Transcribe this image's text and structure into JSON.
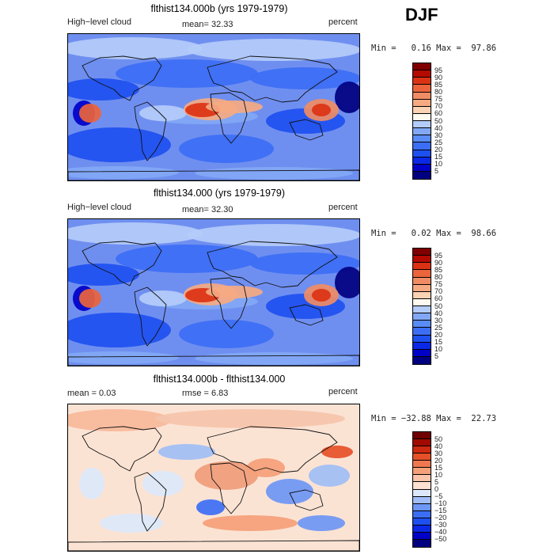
{
  "season": "DJF",
  "panels": [
    {
      "title": "flthist134.000b (yrs 1979-1979)",
      "left_label": "High−level cloud",
      "middle_label": "mean=  32.33",
      "right_label": "percent",
      "min_max": "Min =   0.16 Max =  97.86"
    },
    {
      "title": "flthist134.000 (yrs 1979-1979)",
      "left_label": "High−level cloud",
      "middle_label": "mean=  32.30",
      "right_label": "percent",
      "min_max": "Min =   0.02 Max =  98.66"
    },
    {
      "title": "flthist134.000b - flthist134.000",
      "left_label": "mean =   0.03",
      "middle_label": "rmse =   6.83",
      "right_label": "percent",
      "min_max": "Min = −32.88 Max =  22.73"
    }
  ],
  "chart_data": [
    {
      "type": "heatmap",
      "title": "flthist134.000b (yrs 1979-1979)",
      "variable": "High-level cloud",
      "units": "percent",
      "mean": 32.33,
      "min": 0.16,
      "max": 97.86,
      "colorbar_levels": [
        5,
        10,
        15,
        20,
        25,
        30,
        40,
        50,
        60,
        70,
        75,
        80,
        85,
        90,
        95
      ],
      "colorbar_colors": [
        "#000080",
        "#0000c8",
        "#0a28e6",
        "#1e50f0",
        "#3c6ef5",
        "#5a8cf5",
        "#82a8f5",
        "#b4ccfa",
        "#fffaf0",
        "#fad2b4",
        "#f5aa82",
        "#f08c64",
        "#eb643c",
        "#dc3214",
        "#b40a00",
        "#800000"
      ]
    },
    {
      "type": "heatmap",
      "title": "flthist134.000 (yrs 1979-1979)",
      "variable": "High-level cloud",
      "units": "percent",
      "mean": 32.3,
      "min": 0.02,
      "max": 98.66,
      "colorbar_levels": [
        5,
        10,
        15,
        20,
        25,
        30,
        40,
        50,
        60,
        70,
        75,
        80,
        85,
        90,
        95
      ],
      "colorbar_colors": [
        "#000080",
        "#0000c8",
        "#0a28e6",
        "#1e50f0",
        "#3c6ef5",
        "#5a8cf5",
        "#82a8f5",
        "#b4ccfa",
        "#fffaf0",
        "#fad2b4",
        "#f5aa82",
        "#f08c64",
        "#eb643c",
        "#dc3214",
        "#b40a00",
        "#800000"
      ]
    },
    {
      "type": "heatmap",
      "title": "flthist134.000b - flthist134.000",
      "units": "percent",
      "mean": 0.03,
      "rmse": 6.83,
      "min": -32.88,
      "max": 22.73,
      "colorbar_levels": [
        "−50",
        "−40",
        "−30",
        "−20",
        "−15",
        "−10",
        "−5",
        "0",
        "5",
        "10",
        "15",
        "20",
        "30",
        "40",
        "50"
      ],
      "colorbar_colors": [
        "#000080",
        "#0000c8",
        "#0a28e6",
        "#1e50f0",
        "#3c6ef5",
        "#6e96f5",
        "#a0bef5",
        "#dce8fa",
        "#fde0d2",
        "#fac4aa",
        "#f5a078",
        "#f07850",
        "#e65028",
        "#cd2810",
        "#a00a00",
        "#700000"
      ]
    }
  ]
}
